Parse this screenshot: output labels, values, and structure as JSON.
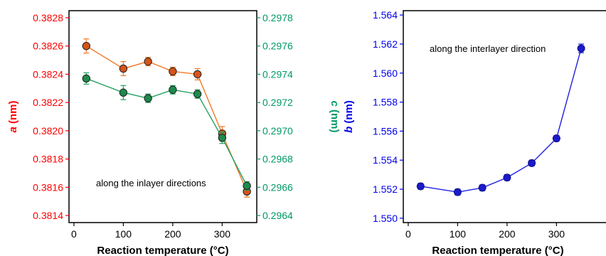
{
  "chart_data": [
    {
      "type": "scatter",
      "colors": {
        "left_axis": "#ff0000",
        "right_axis": "#009966",
        "frame": "#000000"
      },
      "xlabel": "Reaction temperature (°C)",
      "xlim": [
        -10,
        370
      ],
      "xticks": [
        "0",
        "100",
        "200",
        "300"
      ],
      "ylabel_left": {
        "symbol": "a",
        "unit": " (nm)"
      },
      "ylim_left": [
        0.38135,
        0.38285
      ],
      "yticks_left": [
        "0.3814",
        "0.3816",
        "0.3818",
        "0.3820",
        "0.3822",
        "0.3824",
        "0.3826",
        "0.3828"
      ],
      "ylabel_right": {
        "symbol": "c",
        "unit": " (nm)"
      },
      "ylim_right": [
        0.29635,
        0.29785
      ],
      "yticks_right": [
        "0.2964",
        "0.2966",
        "0.2968",
        "0.2970",
        "0.2972",
        "0.2974",
        "0.2976",
        "0.2978"
      ],
      "annotation": "along the inlayer directions",
      "series": [
        {
          "axis": "left",
          "line_color": "#f07a2a",
          "marker_color": "#d4541a",
          "x": [
            25,
            100,
            150,
            200,
            250,
            300,
            350
          ],
          "values": [
            0.3826,
            0.38244,
            0.38249,
            0.38242,
            0.3824,
            0.38198,
            0.38157
          ],
          "errors": [
            5e-05,
            5e-05,
            3e-05,
            3e-05,
            4e-05,
            5e-05,
            4e-05
          ]
        },
        {
          "axis": "right",
          "line_color": "#22a060",
          "marker_color": "#1d8a4c",
          "x": [
            25,
            100,
            150,
            200,
            250,
            300,
            350
          ],
          "values": [
            0.29737,
            0.29727,
            0.29723,
            0.29729,
            0.29726,
            0.29695,
            0.29661
          ],
          "errors": [
            4e-05,
            5e-05,
            3e-05,
            3e-05,
            3e-05,
            4e-05,
            3e-05
          ]
        }
      ]
    },
    {
      "type": "line",
      "colors": {
        "axis": "#0000ee",
        "frame": "#000000"
      },
      "xlabel": "Reaction temperature (°C)",
      "xlim": [
        -10,
        370
      ],
      "xticks": [
        "0",
        "100",
        "200",
        "300"
      ],
      "ylabel": {
        "symbol": "b",
        "unit": " (nm)"
      },
      "ylim": [
        1.5497,
        1.5643
      ],
      "yticks": [
        "1.550",
        "1.552",
        "1.554",
        "1.556",
        "1.558",
        "1.560",
        "1.562",
        "1.564"
      ],
      "annotation": "along the interlayer direction",
      "series": [
        {
          "line_color": "#2020e0",
          "marker_color": "#1a1acc",
          "x": [
            25,
            100,
            150,
            200,
            250,
            300,
            350
          ],
          "values": [
            1.5522,
            1.5518,
            1.5521,
            1.5528,
            1.5538,
            1.5555,
            1.5617
          ],
          "errors": [
            0.0002,
            0.0002,
            0.0002,
            0.0002,
            0.0002,
            0.0002,
            0.0003
          ]
        }
      ]
    }
  ]
}
